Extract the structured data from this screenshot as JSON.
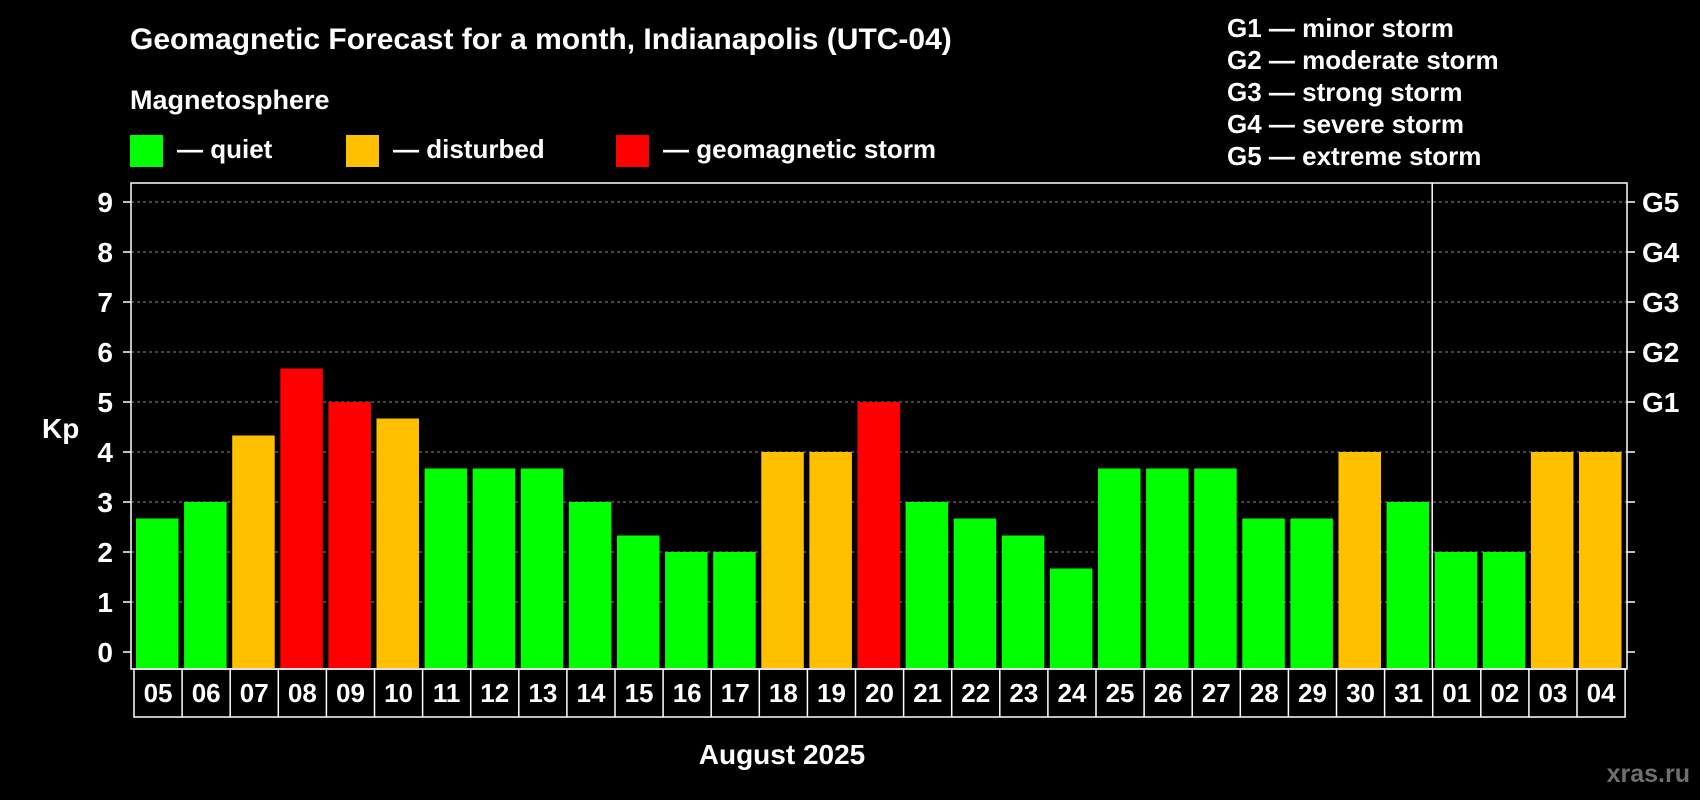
{
  "title": "Geomagnetic Forecast for a month, Indianapolis (UTC-04)",
  "subtitle": "Magnetosphere",
  "legend": [
    {
      "label": "— quiet",
      "color": "#00ff00"
    },
    {
      "label": "— disturbed",
      "color": "#ffc000"
    },
    {
      "label": "— geomagnetic storm",
      "color": "#ff0000"
    }
  ],
  "storm_scale": [
    "G1 — minor storm",
    "G2 — moderate storm",
    "G3 — strong storm",
    "G4 — severe storm",
    "G5 — extreme storm"
  ],
  "watermark": "xras.ru",
  "chart_data": {
    "type": "bar",
    "title": "Geomagnetic Forecast for a month, Indianapolis (UTC-04)",
    "xlabel": "August 2025",
    "ylabel": "Kp",
    "ylim": [
      0,
      9
    ],
    "yticks": [
      "0",
      "1",
      "2",
      "3",
      "4",
      "5",
      "6",
      "7",
      "8",
      "9"
    ],
    "right_axis_labels": [
      {
        "value": 5,
        "label": "G1"
      },
      {
        "value": 6,
        "label": "G2"
      },
      {
        "value": 7,
        "label": "G3"
      },
      {
        "value": 8,
        "label": "G4"
      },
      {
        "value": 9,
        "label": "G5"
      }
    ],
    "month_divider_after_index": 26,
    "categories": [
      "05",
      "06",
      "07",
      "08",
      "09",
      "10",
      "11",
      "12",
      "13",
      "14",
      "15",
      "16",
      "17",
      "18",
      "19",
      "20",
      "21",
      "22",
      "23",
      "24",
      "25",
      "26",
      "27",
      "28",
      "29",
      "30",
      "31",
      "01",
      "02",
      "03",
      "04"
    ],
    "values": [
      2.67,
      3.0,
      4.33,
      5.67,
      5.0,
      4.67,
      3.67,
      3.67,
      3.67,
      3.0,
      2.33,
      2.0,
      2.0,
      4.0,
      4.0,
      5.0,
      3.0,
      2.67,
      2.33,
      1.67,
      3.67,
      3.67,
      3.67,
      2.67,
      2.67,
      4.0,
      3.0,
      2.0,
      2.0,
      4.0,
      4.0
    ],
    "levels": [
      "quiet",
      "quiet",
      "disturbed",
      "storm",
      "storm",
      "disturbed",
      "quiet",
      "quiet",
      "quiet",
      "quiet",
      "quiet",
      "quiet",
      "quiet",
      "disturbed",
      "disturbed",
      "storm",
      "quiet",
      "quiet",
      "quiet",
      "quiet",
      "quiet",
      "quiet",
      "quiet",
      "quiet",
      "quiet",
      "disturbed",
      "quiet",
      "quiet",
      "quiet",
      "disturbed",
      "disturbed"
    ],
    "level_colors": {
      "quiet": "#00ff00",
      "disturbed": "#ffc000",
      "storm": "#ff0000"
    },
    "grid": "dashed horizontal"
  }
}
